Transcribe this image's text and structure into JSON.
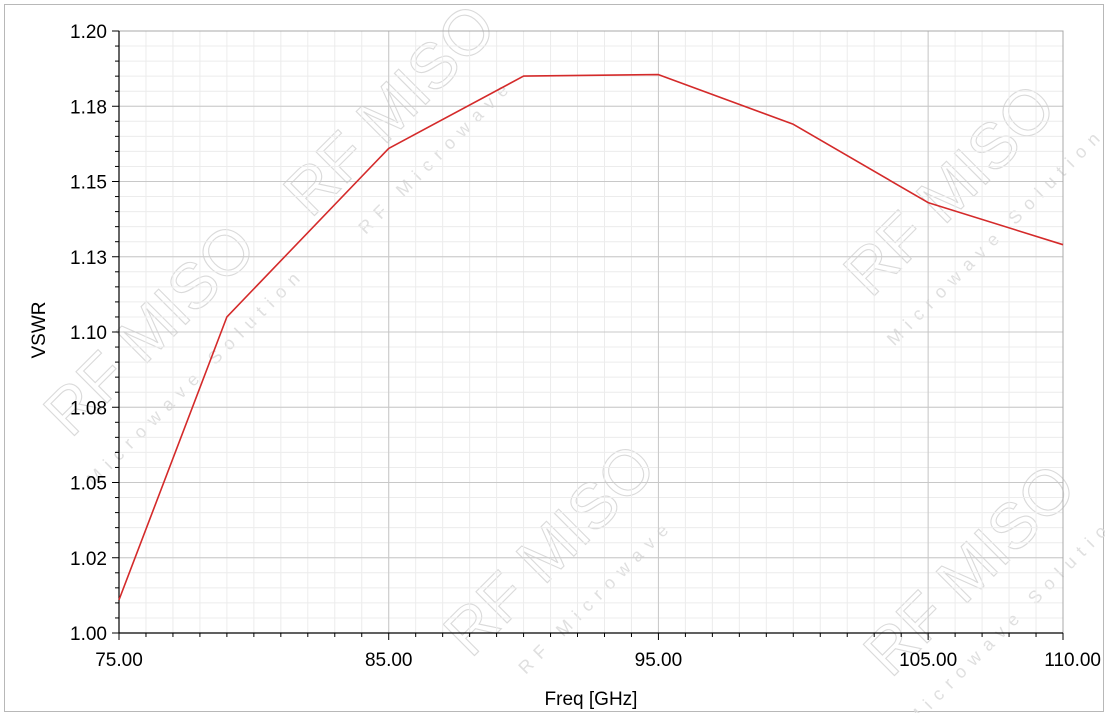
{
  "chart_data": {
    "type": "line",
    "title": "",
    "xlabel": "Freq [GHz]",
    "ylabel": "VSWR",
    "xlim": [
      75,
      110
    ],
    "ylim": [
      1.0,
      1.2
    ],
    "x_major_ticks": [
      75,
      85,
      95,
      105,
      110
    ],
    "x_tick_labels": [
      "75.00",
      "85.00",
      "95.00",
      "105.00",
      "110.00"
    ],
    "y_major_ticks": [
      1.0,
      1.025,
      1.05,
      1.075,
      1.1,
      1.125,
      1.15,
      1.175,
      1.2
    ],
    "y_tick_labels": [
      "1.00",
      "1.02",
      "1.05",
      "1.08",
      "1.10",
      "1.13",
      "1.15",
      "1.18",
      "1.20"
    ],
    "grid": true,
    "legend": "none",
    "series": [
      {
        "color": "#d42a2a",
        "x": [
          75,
          79,
          85,
          90,
          95,
          100,
          105,
          110
        ],
        "y": [
          1.011,
          1.105,
          1.161,
          1.185,
          1.1855,
          1.169,
          1.143,
          1.129
        ]
      }
    ]
  },
  "watermark": {
    "brand": "RF MISO",
    "tagline": "Microwave Solution",
    "tagline_alt": "RF Microwave"
  },
  "colors": {
    "grid_major": "#c8c8c8",
    "grid_minor": "#ececec",
    "axis": "#000000",
    "line": "#d42a2a"
  }
}
